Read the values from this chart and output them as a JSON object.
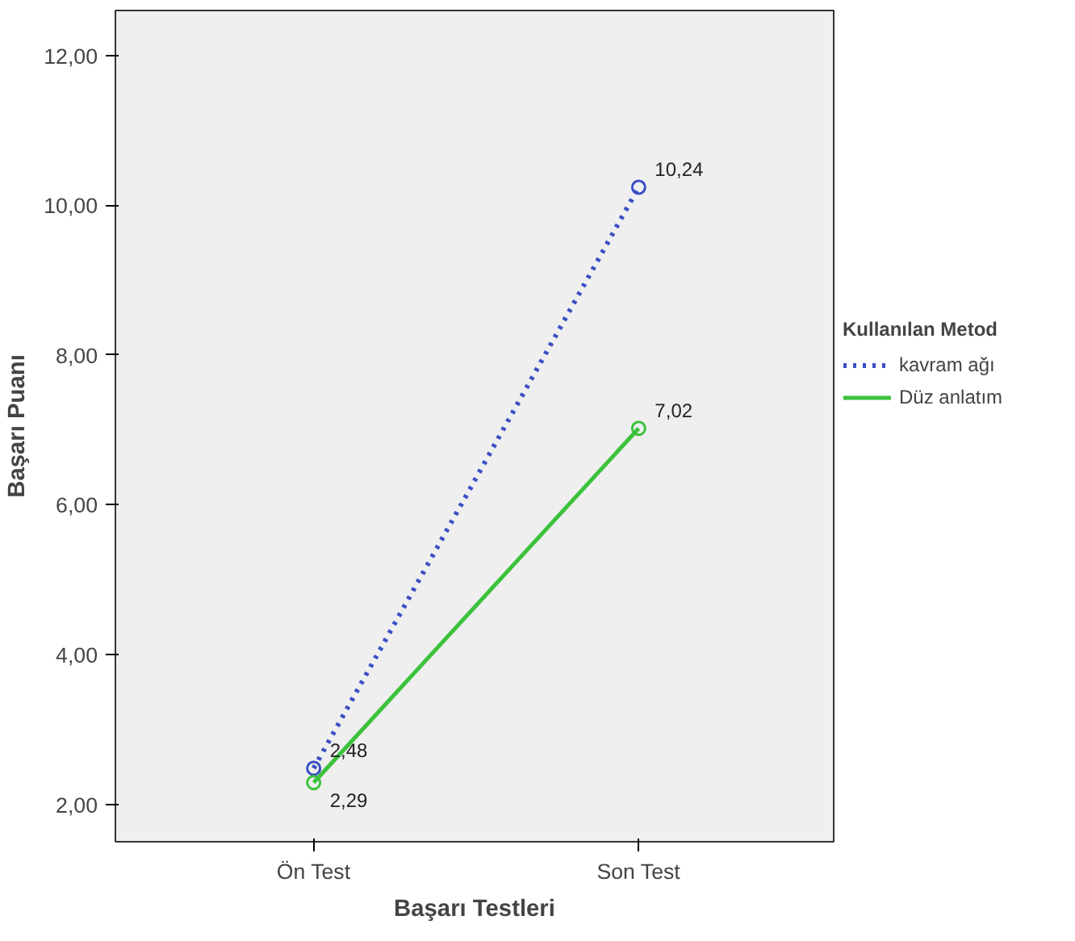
{
  "chart_data": {
    "type": "line",
    "xlabel": "Başarı Testleri",
    "ylabel": "Başarı Puanı",
    "legend_title": "Kullanılan Metod",
    "categories": [
      "Ön Test",
      "Son Test"
    ],
    "series": [
      {
        "name": "kavram ağı",
        "color": "#3b4fc4",
        "values": [
          2.48,
          10.24
        ],
        "value_labels": [
          "2,48",
          "10,24"
        ],
        "line_style": "dotted"
      },
      {
        "name": "Düz anlatım",
        "color": "#3cc23c",
        "values": [
          2.29,
          7.02
        ],
        "value_labels": [
          "2,29",
          "7,02"
        ],
        "line_style": "solid"
      }
    ],
    "ylim": [
      1.5,
      12.6
    ],
    "yticks": [
      {
        "value": 2,
        "label": "2,00"
      },
      {
        "value": 4,
        "label": "4,00"
      },
      {
        "value": 6,
        "label": "6,00"
      },
      {
        "value": 8,
        "label": "8,00"
      },
      {
        "value": 10,
        "label": "10,00"
      },
      {
        "value": 12,
        "label": "12,00"
      }
    ],
    "marker": "circle",
    "legend": "right",
    "grid": false,
    "data_labels": true
  }
}
